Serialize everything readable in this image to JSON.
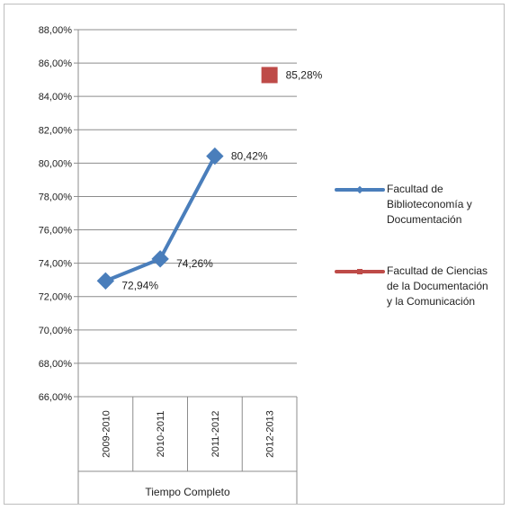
{
  "chart_data": {
    "type": "line",
    "categories": [
      "2009-2010",
      "2010-2011",
      "2011-2012",
      "2012-2013"
    ],
    "category_group_label": "Tiempo Completo",
    "ylim": [
      0.66,
      0.88
    ],
    "y_ticks": [
      "66,00%",
      "68,00%",
      "70,00%",
      "72,00%",
      "74,00%",
      "76,00%",
      "78,00%",
      "80,00%",
      "82,00%",
      "84,00%",
      "86,00%",
      "88,00%"
    ],
    "grid": true,
    "legend_position": "right",
    "series": [
      {
        "name": "Facultad de Biblioteconomía y Documentación",
        "values": [
          0.7294,
          0.7426,
          0.8042,
          null
        ],
        "labels": [
          "72,94%",
          "74,26%",
          "80,42%",
          ""
        ],
        "color": "#4a7ebb",
        "marker": "diamond"
      },
      {
        "name": "Facultad de Ciencias de la Documentación y la Comunicación",
        "values": [
          null,
          null,
          null,
          0.8528
        ],
        "labels": [
          "",
          "",
          "",
          "85,28%"
        ],
        "color": "#be4b48",
        "marker": "square"
      }
    ]
  }
}
